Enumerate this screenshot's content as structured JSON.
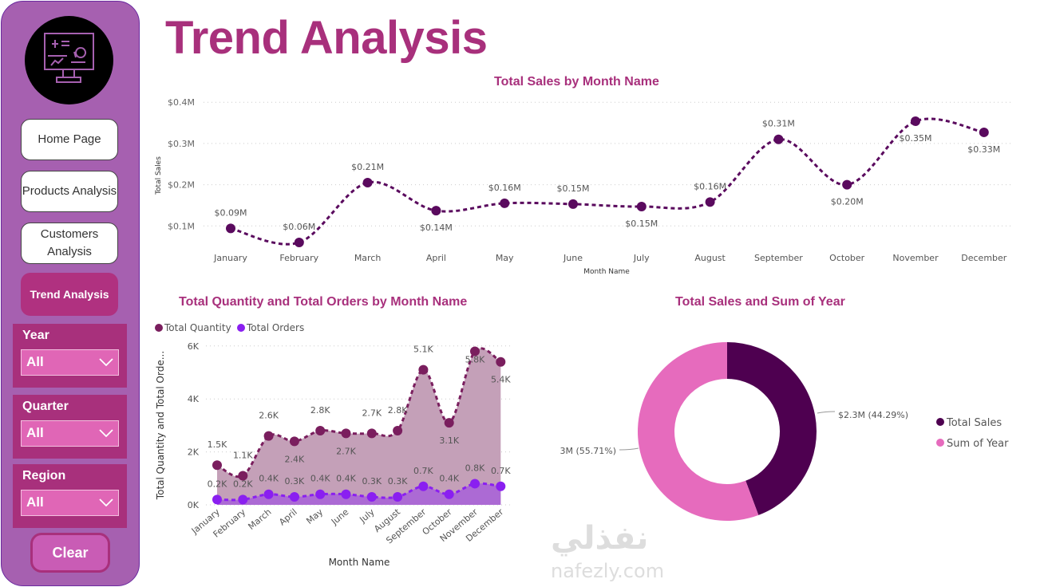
{
  "sidebar": {
    "nav": [
      "Home Page",
      "Products Analysis",
      "Customers Analysis",
      "Trend Analysis"
    ],
    "slicers": [
      {
        "label": "Year",
        "value": "All"
      },
      {
        "label": "Quarter",
        "value": "All"
      },
      {
        "label": "Region",
        "value": "All"
      }
    ],
    "clear": "Clear"
  },
  "page_title": "Trend Analysis",
  "watermark": {
    "arabic": "نفذلي",
    "latin": "nafezly.com"
  },
  "colors": {
    "accent": "#a8307c",
    "dark": "#5a0a5e",
    "orders": "#8a1ff0",
    "pink": "#e66bbd"
  },
  "chart_data": [
    {
      "type": "line",
      "title": "Total Sales by Month Name",
      "xlabel": "Month Name",
      "ylabel": "Total Sales",
      "categories": [
        "January",
        "February",
        "March",
        "April",
        "May",
        "June",
        "July",
        "August",
        "September",
        "October",
        "November",
        "December"
      ],
      "values": [
        0.094,
        0.06,
        0.205,
        0.137,
        0.155,
        0.153,
        0.147,
        0.158,
        0.31,
        0.2,
        0.354,
        0.327
      ],
      "labels": [
        "$0.09M",
        "$0.06M",
        "$0.21M",
        "$0.14M",
        "$0.16M",
        "$0.15M",
        "$0.15M",
        "$0.16M",
        "$0.31M",
        "$0.20M",
        "$0.35M",
        "$0.33M"
      ],
      "yticks": [
        "$0.1M",
        "$0.2M",
        "$0.3M",
        "$0.4M"
      ],
      "ylim": [
        0,
        0.4
      ]
    },
    {
      "type": "area",
      "title": "Total Quantity and Total Orders by Month Name",
      "xlabel": "Month Name",
      "ylabel": "Total Quantity and Total Orde...",
      "categories": [
        "January",
        "February",
        "March",
        "April",
        "May",
        "June",
        "July",
        "August",
        "September",
        "October",
        "November",
        "December"
      ],
      "series": [
        {
          "name": "Total Quantity",
          "values": [
            1.5,
            1.1,
            2.6,
            2.4,
            2.8,
            2.7,
            2.7,
            2.8,
            5.1,
            3.1,
            5.8,
            5.4
          ],
          "labels": [
            "1.5K",
            "1.1K",
            "2.6K",
            "2.4K",
            "2.8K",
            "2.7K",
            "2.7K",
            "2.8K",
            "5.1K",
            "3.1K",
            "5.8K",
            "5.4K"
          ]
        },
        {
          "name": "Total Orders",
          "values": [
            0.2,
            0.2,
            0.4,
            0.3,
            0.4,
            0.4,
            0.3,
            0.3,
            0.7,
            0.4,
            0.8,
            0.7
          ],
          "labels": [
            "0.2K",
            "0.2K",
            "0.4K",
            "0.3K",
            "0.4K",
            "0.4K",
            "0.3K",
            "0.3K",
            "0.7K",
            "0.4K",
            "0.8K",
            "0.7K"
          ]
        }
      ],
      "yticks": [
        "0K",
        "2K",
        "4K",
        "6K"
      ],
      "ylim": [
        0,
        6
      ]
    },
    {
      "type": "pie",
      "title": "Total Sales and Sum of Year",
      "slices": [
        {
          "name": "Total Sales",
          "value": 44.29,
          "label": "$2.3M (44.29%)"
        },
        {
          "name": "Sum of Year",
          "value": 55.71,
          "label": "3M (55.71%)"
        }
      ]
    }
  ]
}
